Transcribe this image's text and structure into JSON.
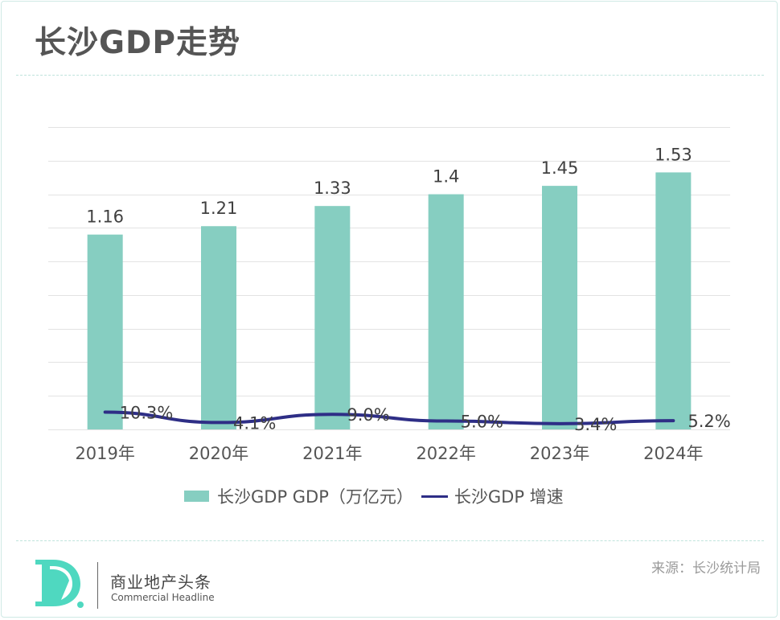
{
  "header": {
    "title": "长沙GDP走势"
  },
  "legend": {
    "bar_label": "长沙GDP GDP（万亿元）",
    "line_label": "长沙GDP 增速"
  },
  "footer": {
    "brand_cn": "商业地产头条",
    "brand_en": "Commercial Headline",
    "logo_icon": "d-logo-icon",
    "source": "来源：长沙统计局"
  },
  "colors": {
    "bar": "#86cec1",
    "line": "#2e2e86",
    "grid": "#e3e3e3",
    "text": "#555555",
    "brand": "#4fd8c0"
  },
  "chart_data": {
    "type": "bar",
    "title": "长沙GDP走势",
    "xlabel": "",
    "ylabel": "",
    "categories": [
      "2019年",
      "2020年",
      "2021年",
      "2022年",
      "2023年",
      "2024年"
    ],
    "ylim": [
      0,
      1.8
    ],
    "y_tick_step": 0.2,
    "grid": true,
    "legend_position": "bottom",
    "series": [
      {
        "name": "长沙GDP GDP（万亿元）",
        "type": "bar",
        "values": [
          1.16,
          1.21,
          1.33,
          1.4,
          1.45,
          1.53
        ],
        "labels": [
          "1.16",
          "1.21",
          "1.33",
          "1.4",
          "1.45",
          "1.53"
        ]
      },
      {
        "name": "长沙GDP 增速",
        "type": "line",
        "values": [
          0.103,
          0.041,
          0.09,
          0.05,
          0.034,
          0.052
        ],
        "labels": [
          "10.3%",
          "4.1%",
          "9.0%",
          "5.0%",
          "3.4%",
          "5.2%"
        ]
      }
    ]
  }
}
